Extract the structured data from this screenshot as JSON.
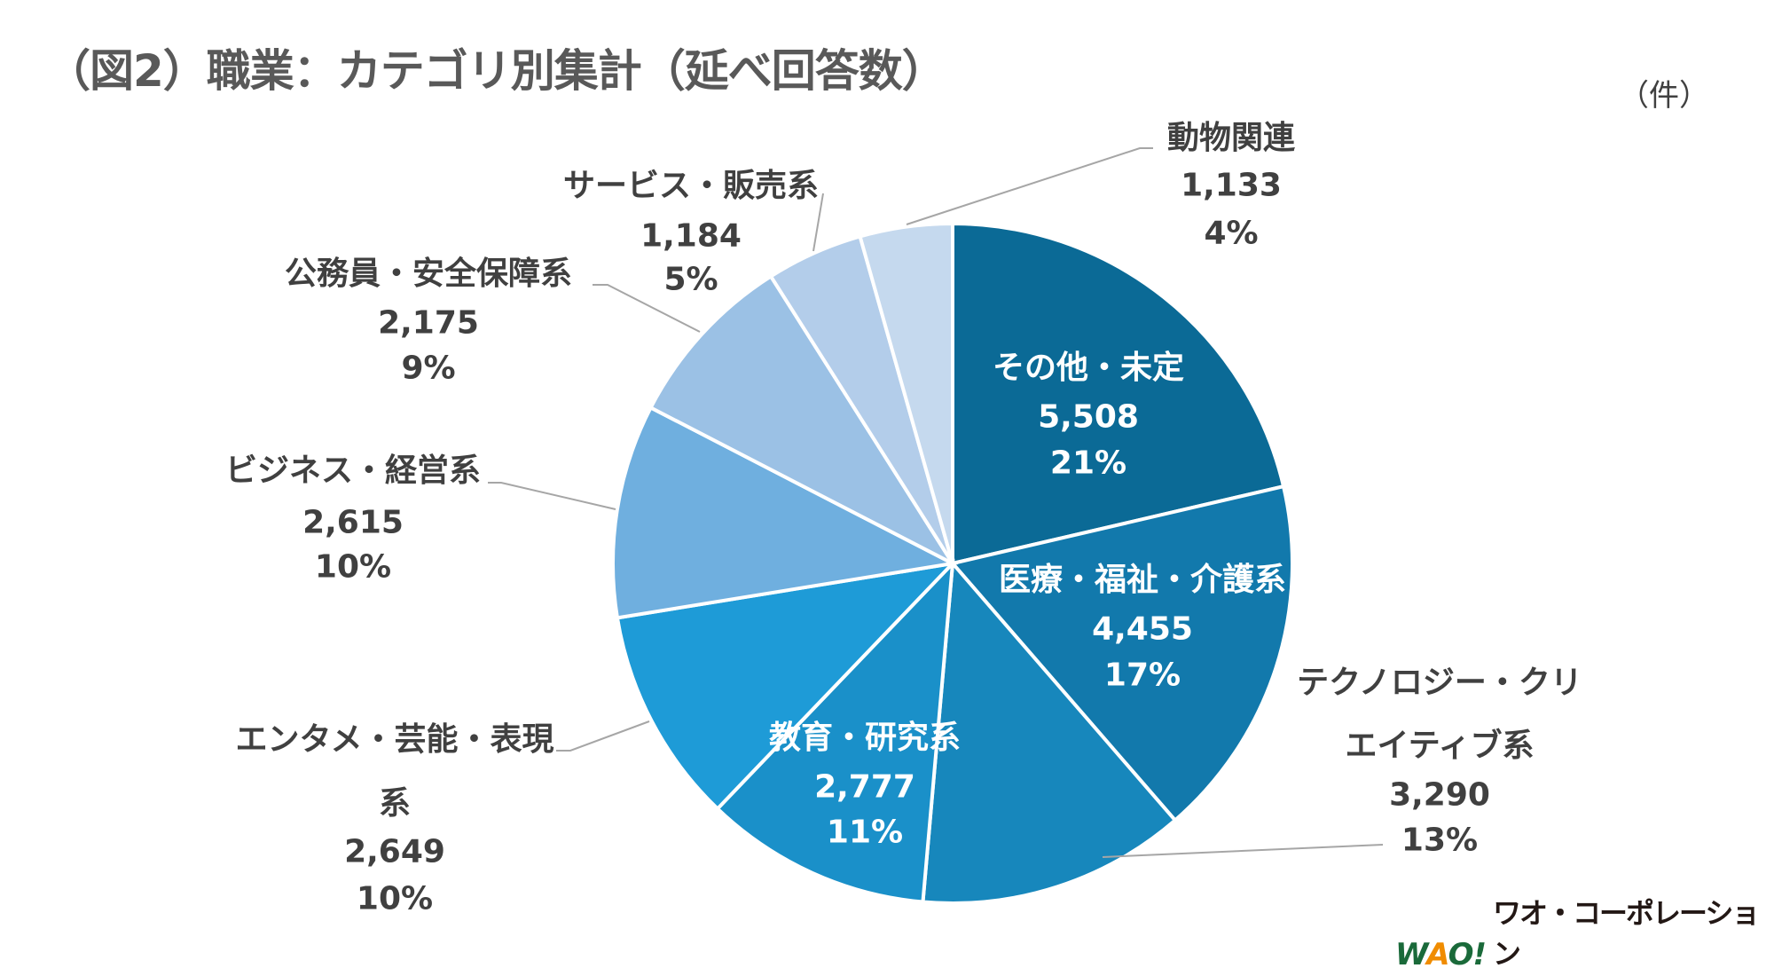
{
  "title": "（図2）職業：カテゴリ別集計（延べ回答数）",
  "unit_label": "（件）",
  "logo": {
    "mark": "WAO!",
    "text": "ワオ・コーポレーション",
    "colors": {
      "green": "#1a6a3a",
      "orange": "#f08c00"
    }
  },
  "chart_data": {
    "type": "pie",
    "title": "（図2）職業：カテゴリ別集計（延べ回答数）",
    "start": "12 o'clock",
    "direction": "clockwise",
    "slices": [
      {
        "label": "その他・未定",
        "value": 5508,
        "value_text": "5,508",
        "percent": "21%",
        "color": "#0b6a96"
      },
      {
        "label": "医療・福祉・介護系",
        "value": 4455,
        "value_text": "4,455",
        "percent": "17%",
        "color": "#1279ac"
      },
      {
        "label": "テクノロジー・クリエイティブ系",
        "label_lines": [
          "テクノロジー・クリ",
          "エイティブ系"
        ],
        "value": 3290,
        "value_text": "3,290",
        "percent": "13%",
        "color": "#1787bc"
      },
      {
        "label": "教育・研究系",
        "value": 2777,
        "value_text": "2,777",
        "percent": "11%",
        "color": "#1a90c9"
      },
      {
        "label": "エンタメ・芸能・表現系",
        "label_lines": [
          "エンタメ・芸能・表現",
          "系"
        ],
        "value": 2649,
        "value_text": "2,649",
        "percent": "10%",
        "color": "#1e9bd7"
      },
      {
        "label": "ビジネス・経営系",
        "value": 2615,
        "value_text": "2,615",
        "percent": "10%",
        "color": "#6fafdf"
      },
      {
        "label": "公務員・安全保障系",
        "value": 2175,
        "value_text": "2,175",
        "percent": "9%",
        "color": "#9bc1e5"
      },
      {
        "label": "サービス・販売系",
        "value": 1184,
        "value_text": "1,184",
        "percent": "5%",
        "color": "#b3cdea"
      },
      {
        "label": "動物関連",
        "value": 1133,
        "value_text": "1,133",
        "percent": "4%",
        "color": "#c5d9ee"
      }
    ]
  }
}
